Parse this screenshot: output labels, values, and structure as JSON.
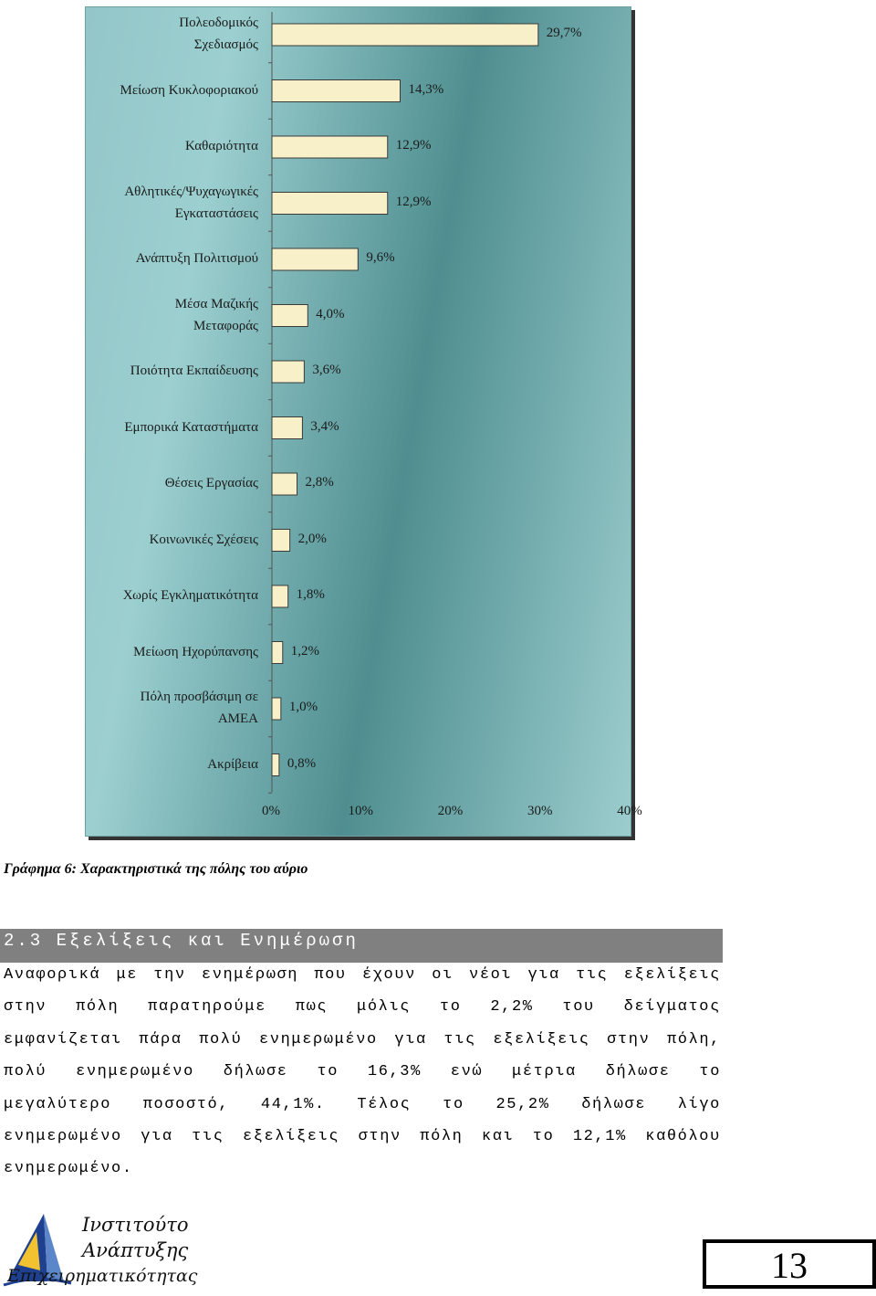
{
  "chart_data": {
    "type": "bar",
    "orientation": "horizontal",
    "categories": [
      "Πολεοδομικός\nΣχεδιασμός",
      "Μείωση Κυκλοφοριακού",
      "Καθαριότητα",
      "Αθλητικές/Ψυχαγωγικές\nΕγκαταστάσεις",
      "Ανάπτυξη Πολιτισμού",
      "Μέσα Μαζικής\nΜεταφοράς",
      "Ποιότητα Εκπαίδευσης",
      "Εμπορικά Καταστήματα",
      "Θέσεις Εργασίας",
      "Κοινωνικές Σχέσεις",
      "Χωρίς Εγκληματικότητα",
      "Μείωση Ηχορύπανσης",
      "Πόλη προσβάσιμη σε\nΑΜΕΑ",
      "Ακρίβεια"
    ],
    "values": [
      29.7,
      14.3,
      12.9,
      12.9,
      9.6,
      4.0,
      3.6,
      3.4,
      2.8,
      2.0,
      1.8,
      1.2,
      1.0,
      0.8
    ],
    "value_labels": [
      "29,7%",
      "14,3%",
      "12,9%",
      "12,9%",
      "9,6%",
      "4,0%",
      "3,6%",
      "3,4%",
      "2,8%",
      "2,0%",
      "1,8%",
      "1,2%",
      "1,0%",
      "0,8%"
    ],
    "xlim": [
      0,
      40
    ],
    "x_ticks": [
      "0%",
      "10%",
      "20%",
      "30%",
      "40%"
    ],
    "bar_color": "#f7f0c8",
    "background_colors": [
      "#9ccfd0",
      "#4f8e90"
    ]
  },
  "caption": "Γράφημα 6: Χαρακτηριστικά της πόλης του αύριο",
  "section": {
    "heading": "2.3 Εξελίξεις και Ενημέρωση",
    "lines": [
      [
        "Αναφορικά",
        "με",
        "την",
        "ενημέρωση",
        "που",
        "έχουν",
        "οι",
        "νέοι",
        "για",
        "τις",
        "εξελίξεις"
      ],
      [
        "στην",
        "πόλη",
        "παρατηρούμε",
        "πως",
        "μόλις",
        "το",
        "2,2%",
        "του",
        "δείγματος"
      ],
      [
        "εμφανίζεται",
        "πάρα",
        "πολύ",
        "ενημερωμένο",
        "για",
        "τις",
        "εξελίξεις",
        "στην",
        "πόλη,"
      ],
      [
        "πολύ",
        "ενημερωμένο",
        "δήλωσε",
        "το",
        "16,3%",
        "ενώ",
        "μέτρια",
        "δήλωσε",
        "το"
      ],
      [
        "μεγαλύτερο",
        "ποσοστό,",
        "44,1%.",
        "Τέλος",
        "το",
        "25,2%",
        "δήλωσε",
        "λίγο"
      ],
      [
        "ενημερωμένο",
        "για",
        "τις",
        "εξελίξεις",
        "στην",
        "πόλη",
        "και",
        "το",
        "12,1%",
        "καθόλου"
      ]
    ],
    "last_line": "ενημερωμένο."
  },
  "footer": {
    "logo_lines": [
      "Ινστιτούτο",
      "Ανάπτυξης",
      "Επιχειρηματικότητας"
    ],
    "page_number": "13"
  }
}
